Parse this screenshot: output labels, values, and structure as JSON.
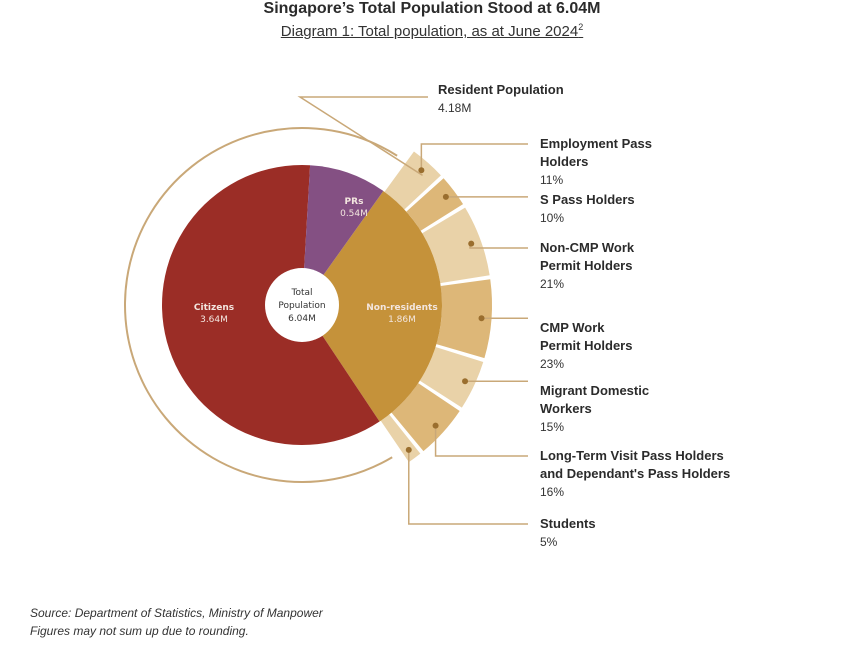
{
  "title": "Singapore’s Total Population Stood at 6.04M",
  "subtitle": "Diagram 1: Total population, as at June 2024",
  "subtitle_footnote": "2",
  "colors": {
    "citizens": "#9b2d26",
    "prs": "#845083",
    "nonresidents": "#c5923a",
    "breakdown": "#ddb778",
    "breakdown_light": "#e9d2a8",
    "outline": "#c9a878",
    "leader": "#c9a878",
    "dot": "#9a6e2e"
  },
  "chart_data": {
    "type": "pie",
    "center": {
      "label": "Total Population",
      "value": "6.04M"
    },
    "inner": [
      {
        "name": "Citizens",
        "value": 3.64,
        "display": "3.64M"
      },
      {
        "name": "PRs",
        "value": 0.54,
        "display": "0.54M"
      },
      {
        "name": "Non-residents",
        "value": 1.86,
        "display": "1.86M"
      }
    ],
    "resident_group": {
      "name": "Resident Population",
      "display": "4.18M"
    },
    "nonresident_breakdown": [
      {
        "name": "Employment Pass Holders",
        "lines": [
          "Employment Pass",
          "Holders"
        ],
        "value": 11,
        "display": "11%"
      },
      {
        "name": "S Pass Holders",
        "lines": [
          "S Pass Holders"
        ],
        "value": 10,
        "display": "10%"
      },
      {
        "name": "Non-CMP Work Permit Holders",
        "lines": [
          "Non-CMP Work",
          "Permit Holders"
        ],
        "value": 21,
        "display": "21%"
      },
      {
        "name": "CMP Work Permit Holders",
        "lines": [
          "CMP Work",
          "Permit Holders"
        ],
        "value": 23,
        "display": "23%"
      },
      {
        "name": "Migrant Domestic Workers",
        "lines": [
          "Migrant Domestic",
          "Workers"
        ],
        "value": 15,
        "display": "15%"
      },
      {
        "name": "Long-Term Visit Pass Holders and Dependant's Pass Holders",
        "lines": [
          "Long-Term Visit Pass Holders",
          "and Dependant's Pass Holders"
        ],
        "value": 16,
        "display": "16%"
      },
      {
        "name": "Students",
        "lines": [
          "Students"
        ],
        "value": 5,
        "display": "5%"
      }
    ]
  },
  "source": {
    "line1": "Source: Department of Statistics, Ministry of Manpower",
    "line2": "Figures may not sum up due to rounding."
  }
}
